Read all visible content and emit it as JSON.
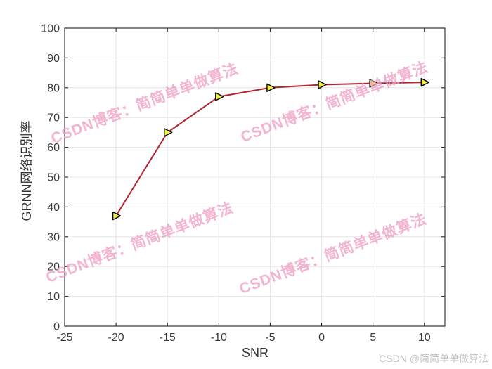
{
  "chart_data": {
    "type": "line",
    "title": "",
    "xlabel": "SNR",
    "ylabel": "GRNN网络识别率",
    "x": [
      -20,
      -15,
      -10,
      -5,
      0,
      5,
      10
    ],
    "y": [
      37,
      65,
      77,
      80,
      81,
      81.5,
      81.8
    ],
    "xlim": [
      -25,
      12
    ],
    "ylim": [
      0,
      100
    ],
    "xticks": [
      -25,
      -20,
      -15,
      -10,
      -5,
      0,
      5,
      10
    ],
    "yticks": [
      0,
      10,
      20,
      30,
      40,
      50,
      60,
      70,
      80,
      90,
      100
    ],
    "grid": true,
    "legend_position": "none",
    "marker": "right-triangle",
    "styles": {
      "line_color": "#b02430",
      "line_width": 2,
      "marker_fill": "#f1ee40",
      "marker_edge": "#000000",
      "grid_color": "#e4e4e4",
      "axis_color": "#262626",
      "tick_label_color": "#3d3d3d",
      "label_color": "#333333",
      "background": "#ffffff"
    }
  },
  "watermarks": {
    "tiled_text": "CSDN博客：简简单单做算法",
    "tiled_color": "#efa0c4",
    "corner_text": "CSDN @简简单单做算法",
    "corner_color": "#c6c0c3"
  }
}
